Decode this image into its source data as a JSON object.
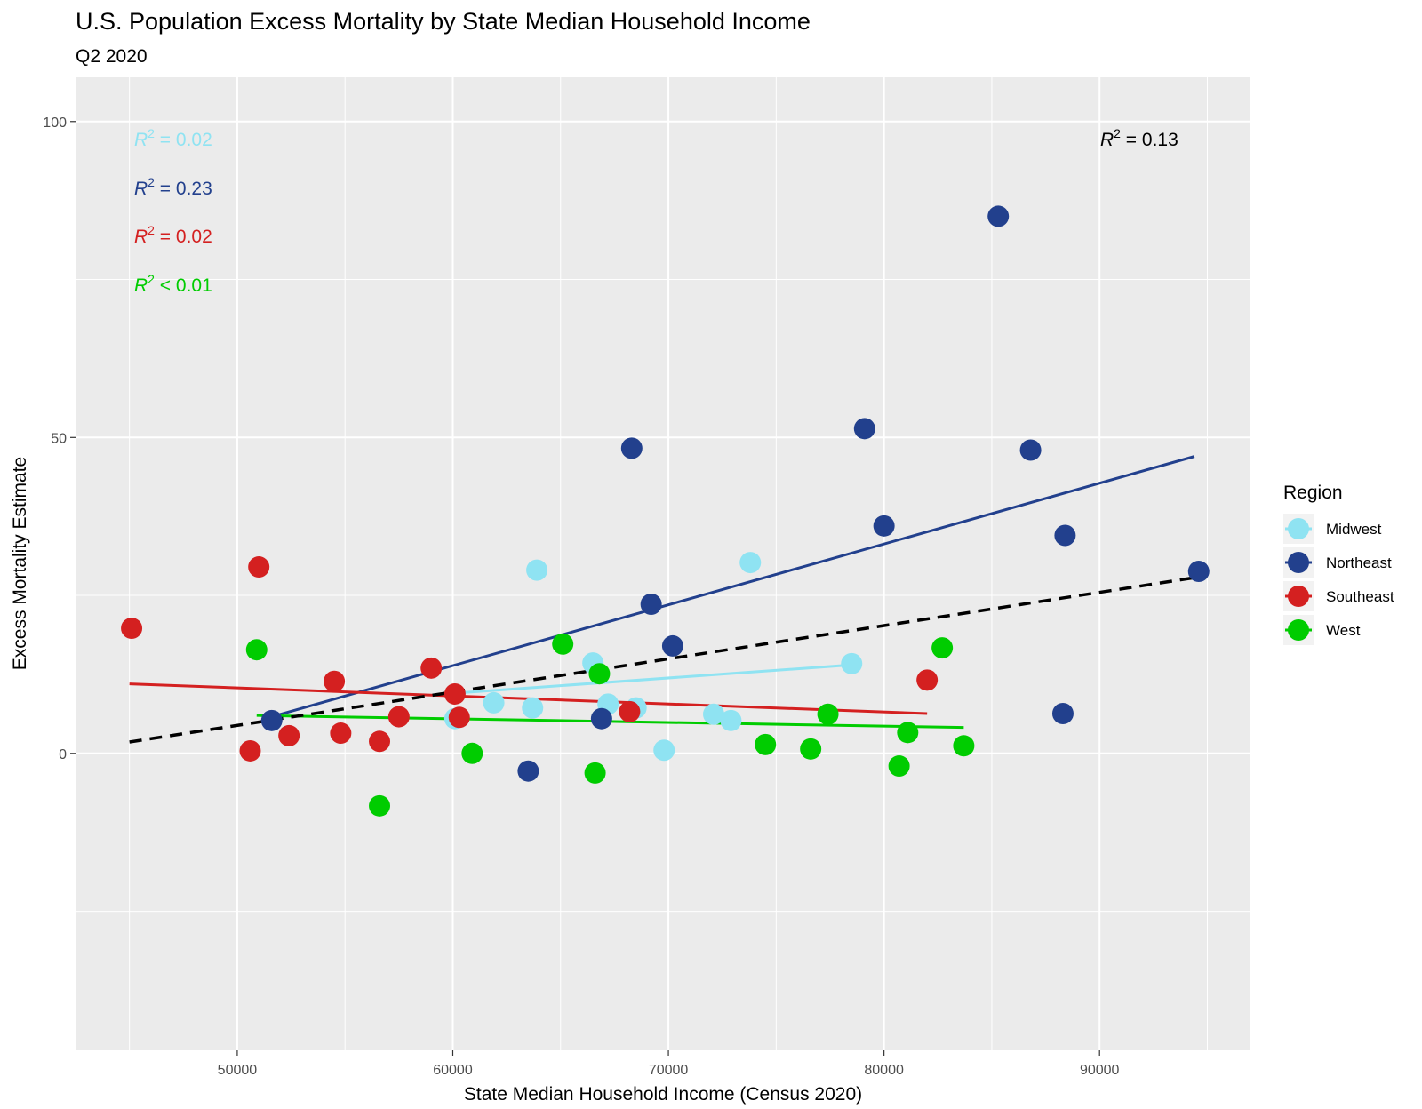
{
  "chart_data": {
    "type": "scatter",
    "title": "U.S. Population Excess Mortality by State Median Household Income",
    "subtitle": "Q2 2020",
    "xlabel": "State Median Household Income (Census 2020)",
    "ylabel": "Excess Mortality Estimate",
    "xlim": [
      42500,
      97000
    ],
    "ylim": [
      -47,
      107
    ],
    "x_ticks": [
      50000,
      60000,
      70000,
      80000,
      90000
    ],
    "y_ticks": [
      0,
      50,
      100
    ],
    "grid": true,
    "legend": {
      "title": "Region",
      "position": "right"
    },
    "series": [
      {
        "name": "Midwest",
        "color": "#8fe3f2",
        "points": [
          {
            "x": 60100,
            "y": 5.5
          },
          {
            "x": 61900,
            "y": 8
          },
          {
            "x": 63700,
            "y": 7.2
          },
          {
            "x": 63900,
            "y": 29
          },
          {
            "x": 66500,
            "y": 14.3
          },
          {
            "x": 67200,
            "y": 7.8
          },
          {
            "x": 68500,
            "y": 7.2
          },
          {
            "x": 69800,
            "y": 0.5
          },
          {
            "x": 72100,
            "y": 6.2
          },
          {
            "x": 72900,
            "y": 5.2
          },
          {
            "x": 73800,
            "y": 30.2
          },
          {
            "x": 78500,
            "y": 14.2
          }
        ],
        "fit": {
          "x": [
            60000,
            78500
          ],
          "y": [
            9.5,
            14
          ]
        },
        "r2_label": "R2 = 0.02"
      },
      {
        "name": "Northeast",
        "color": "#22408d",
        "points": [
          {
            "x": 51600,
            "y": 5.2
          },
          {
            "x": 63500,
            "y": -2.8
          },
          {
            "x": 66900,
            "y": 5.5
          },
          {
            "x": 68300,
            "y": 48.3
          },
          {
            "x": 69200,
            "y": 23.6
          },
          {
            "x": 70200,
            "y": 17
          },
          {
            "x": 79100,
            "y": 51.4
          },
          {
            "x": 80000,
            "y": 36
          },
          {
            "x": 85300,
            "y": 85
          },
          {
            "x": 86800,
            "y": 48
          },
          {
            "x": 88300,
            "y": 6.3
          },
          {
            "x": 88400,
            "y": 34.5
          },
          {
            "x": 94600,
            "y": 28.8
          }
        ],
        "fit": {
          "x": [
            51600,
            94400
          ],
          "y": [
            5.8,
            47
          ]
        },
        "r2_label": "R2 = 0.23"
      },
      {
        "name": "Southeast",
        "color": "#d42020",
        "points": [
          {
            "x": 45100,
            "y": 19.8
          },
          {
            "x": 50600,
            "y": 0.4
          },
          {
            "x": 51000,
            "y": 29.5
          },
          {
            "x": 52400,
            "y": 2.8
          },
          {
            "x": 54500,
            "y": 11.4
          },
          {
            "x": 54800,
            "y": 3.2
          },
          {
            "x": 56600,
            "y": 1.9
          },
          {
            "x": 57500,
            "y": 5.8
          },
          {
            "x": 59000,
            "y": 13.5
          },
          {
            "x": 60100,
            "y": 9.4
          },
          {
            "x": 60300,
            "y": 5.7
          },
          {
            "x": 68200,
            "y": 6.6
          },
          {
            "x": 82000,
            "y": 11.6
          }
        ],
        "fit": {
          "x": [
            45000,
            82000
          ],
          "y": [
            11,
            6.3
          ]
        },
        "r2_label": "R2 = 0.02"
      },
      {
        "name": "West",
        "color": "#00cc00",
        "points": [
          {
            "x": 50900,
            "y": 16.4
          },
          {
            "x": 56600,
            "y": -8.3
          },
          {
            "x": 60900,
            "y": 0
          },
          {
            "x": 65100,
            "y": 17.3
          },
          {
            "x": 66600,
            "y": -3.1
          },
          {
            "x": 66800,
            "y": 12.6
          },
          {
            "x": 74500,
            "y": 1.4
          },
          {
            "x": 76600,
            "y": 0.7
          },
          {
            "x": 77400,
            "y": 6.2
          },
          {
            "x": 80700,
            "y": -2
          },
          {
            "x": 81100,
            "y": 3.3
          },
          {
            "x": 82700,
            "y": 16.7
          },
          {
            "x": 83700,
            "y": 1.2
          }
        ],
        "fit": {
          "x": [
            50900,
            83700
          ],
          "y": [
            6,
            4.1
          ]
        },
        "r2_label": "R2 < 0.01"
      }
    ],
    "overall_fit": {
      "x": [
        45000,
        94400
      ],
      "y": [
        1.8,
        27.8
      ],
      "color": "#000000",
      "style": "dashed"
    },
    "overall_r2_label": "R2 = 0.13"
  },
  "r2_labels": {
    "midwest": {
      "symbol": "R",
      "exp": "2",
      "rest": " = 0.02"
    },
    "northeast": {
      "symbol": "R",
      "exp": "2",
      "rest": " = 0.23"
    },
    "southeast": {
      "symbol": "R",
      "exp": "2",
      "rest": " = 0.02"
    },
    "west": {
      "symbol": "R",
      "exp": "2",
      "rest": " < 0.01"
    },
    "overall": {
      "symbol": "R",
      "exp": "2",
      "rest": " = 0.13"
    }
  },
  "colors": {
    "panel_bg": "#ebebeb",
    "grid": "#ffffff",
    "midwest": "#8fe3f2",
    "northeast": "#22408d",
    "southeast": "#d42020",
    "west": "#00cc00"
  }
}
